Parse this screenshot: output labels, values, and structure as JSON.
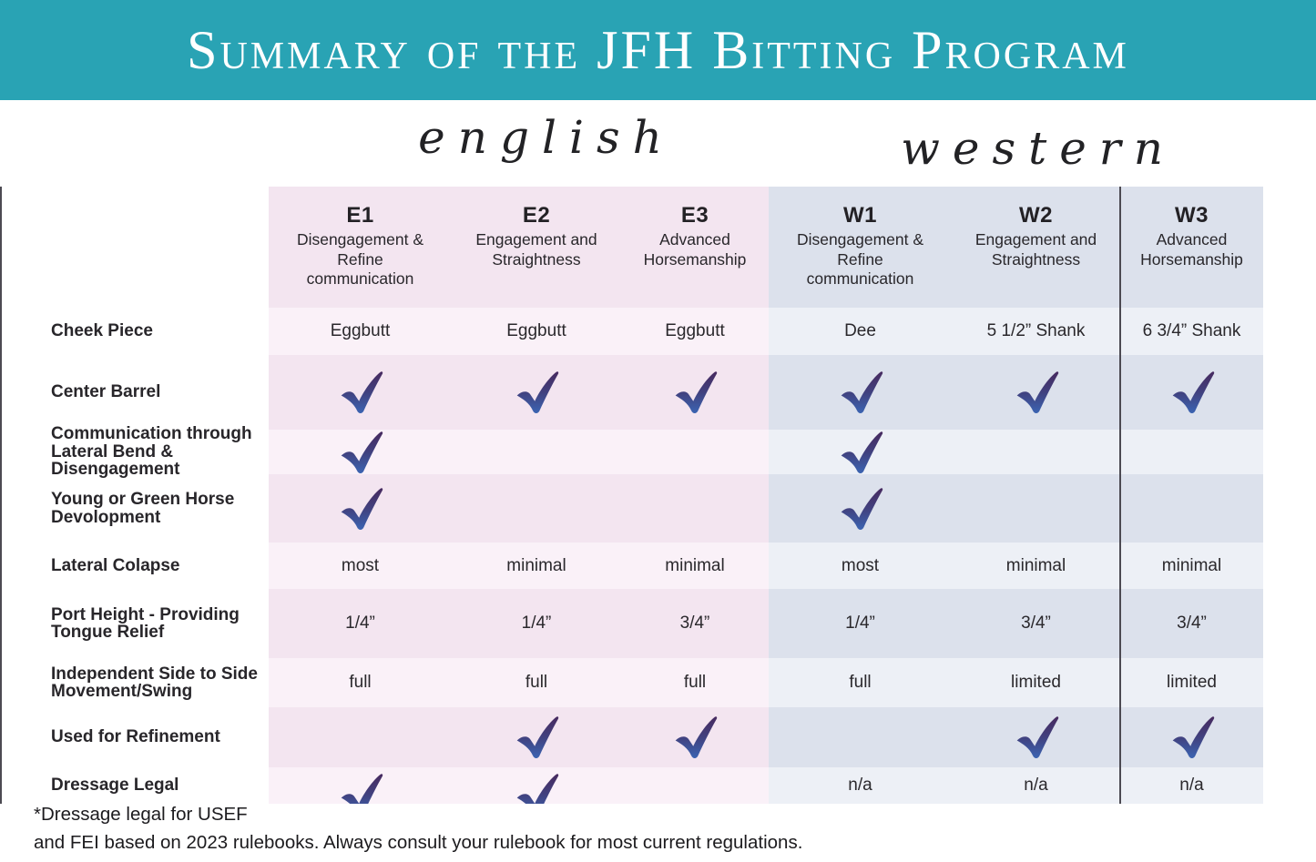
{
  "banner": {
    "title": "Summary of the JFH Bitting Program",
    "background_color": "#29a3b4"
  },
  "sections": {
    "english": "english",
    "western": "western"
  },
  "table": {
    "columns": [
      {
        "code": "E1",
        "subtitle": "Disengagement &\nRefine\ncommunication",
        "group": "english"
      },
      {
        "code": "E2",
        "subtitle": "Engagement and\nStraightness",
        "group": "english"
      },
      {
        "code": "E3",
        "subtitle": "Advanced\nHorsemanship",
        "group": "english"
      },
      {
        "code": "W1",
        "subtitle": "Disengagement &\nRefine\ncommunication",
        "group": "western"
      },
      {
        "code": "W2",
        "subtitle": "Engagement and\nStraightness",
        "group": "western"
      },
      {
        "code": "W3",
        "subtitle": "Advanced\nHorsemanship",
        "group": "western"
      }
    ],
    "rows": [
      {
        "label": "Cheek Piece",
        "cells": [
          "Eggbutt",
          "Eggbutt",
          "Eggbutt",
          "Dee",
          "5 1/2” Shank",
          "6 3/4” Shank"
        ]
      },
      {
        "label": "Center Barrel",
        "cells": [
          "✓",
          "✓",
          "✓",
          "✓",
          "✓",
          "✓"
        ]
      },
      {
        "label": "Communication through\nLateral Bend &\nDisengagement",
        "cells": [
          "✓",
          "",
          "",
          "✓",
          "",
          ""
        ]
      },
      {
        "label": "Young or Green Horse\nDevolopment",
        "cells": [
          "✓",
          "",
          "",
          "✓",
          "",
          ""
        ]
      },
      {
        "label": "Lateral Colapse",
        "cells": [
          "most",
          "minimal",
          "minimal",
          "most",
          "minimal",
          "minimal"
        ]
      },
      {
        "label": "Port Height - Providing\nTongue Relief",
        "cells": [
          "1/4”",
          "1/4”",
          "3/4”",
          "1/4”",
          "3/4”",
          "3/4”"
        ]
      },
      {
        "label": "Independent Side to Side\nMovement/Swing",
        "cells": [
          "full",
          "full",
          "full",
          "full",
          "limited",
          "limited"
        ]
      },
      {
        "label": "Used for Refinement",
        "cells": [
          "",
          "✓",
          "✓",
          "",
          "✓",
          "✓"
        ]
      },
      {
        "label": "Dressage Legal",
        "cells": [
          "✓",
          "✓",
          "",
          "n/a",
          "n/a",
          "n/a"
        ]
      }
    ]
  },
  "footnote": {
    "line1": "*Dressage legal for USEF",
    "line2": "and FEI based on 2023 rulebooks. Always consult your rulebook for most current regulations."
  },
  "colors": {
    "banner_teal": "#29a3b4",
    "english_light": "#faf1f8",
    "english_dark": "#f3e5f0",
    "western_light": "#edf0f6",
    "western_dark": "#dce1ec",
    "divider": "#4c4a52",
    "check_gradient_top": "#472a5f",
    "check_gradient_bottom": "#3b64b2"
  }
}
